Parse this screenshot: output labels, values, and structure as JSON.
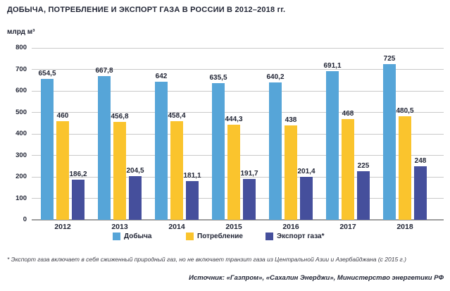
{
  "header": {
    "title": "ДОБЫЧА, ПОТРЕБЛЕНИЕ И ЭКСПОРТ ГАЗА В РОССИИ В 2012–2018 гг.",
    "unit_label": "млрд м³"
  },
  "chart_data": {
    "type": "bar",
    "grouped": true,
    "title": "ДОБЫЧА, ПОТРЕБЛЕНИЕ И ЭКСПОРТ ГАЗА В РОССИИ В 2012–2018 гг.",
    "ylabel": "млрд м³",
    "xlabel": "",
    "categories": [
      "2012",
      "2013",
      "2014",
      "2015",
      "2016",
      "2017",
      "2018"
    ],
    "series": [
      {
        "key": "production",
        "name": "Добыча",
        "color": "#56A5D8",
        "values": [
          654.5,
          667.8,
          642,
          635.5,
          640.2,
          691.1,
          725
        ],
        "labels": [
          "654,5",
          "667,8",
          "642",
          "635,5",
          "640,2",
          "691,1",
          "725"
        ]
      },
      {
        "key": "consumption",
        "name": "Потребление",
        "color": "#FAC42D",
        "values": [
          460,
          456.8,
          458.4,
          444.3,
          438,
          468,
          480.5
        ],
        "labels": [
          "460",
          "456,8",
          "458,4",
          "444,3",
          "438",
          "468",
          "480,5"
        ]
      },
      {
        "key": "export",
        "name": "Экспорт газа*",
        "color": "#454F9C",
        "values": [
          186.2,
          204.5,
          181.1,
          191.7,
          201.4,
          225,
          248
        ],
        "labels": [
          "186,2",
          "204,5",
          "181,1",
          "191,7",
          "201,4",
          "225",
          "248"
        ]
      }
    ],
    "ylim": [
      0,
      800
    ],
    "yticks": [
      800,
      700,
      600,
      500,
      400,
      300,
      200,
      100,
      0
    ],
    "grid": true,
    "legend_position": "bottom"
  },
  "footer": {
    "footnote": "* Экспорт газа включает в себя сжиженный природный газ, но не включает транзит газа из Центральной Азии и Азербайджана (с 2015 г.)",
    "source": "Источник: «Газпром», «Сахалин Энерджи», Министерство энергетики РФ"
  }
}
